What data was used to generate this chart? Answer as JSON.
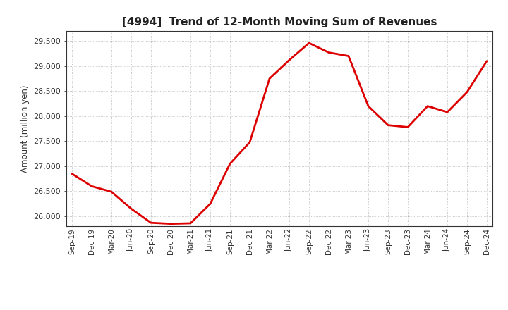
{
  "title": "[4994]  Trend of 12-Month Moving Sum of Revenues",
  "ylabel": "Amount (million yen)",
  "line_color": "#DD0000",
  "background_color": "#FFFFFF",
  "grid_color": "#999999",
  "ylim": [
    25800,
    29700
  ],
  "yticks": [
    26000,
    26500,
    27000,
    27500,
    28000,
    28500,
    29000,
    29500
  ],
  "x_labels": [
    "Sep-19",
    "Dec-19",
    "Mar-20",
    "Jun-20",
    "Sep-20",
    "Dec-20",
    "Mar-21",
    "Jun-21",
    "Sep-21",
    "Dec-21",
    "Mar-22",
    "Jun-22",
    "Sep-22",
    "Dec-22",
    "Mar-23",
    "Jun-23",
    "Sep-23",
    "Dec-23",
    "Mar-24",
    "Jun-24",
    "Sep-24",
    "Dec-24"
  ],
  "values": [
    26850,
    26600,
    26490,
    26150,
    25870,
    25850,
    25860,
    26250,
    27050,
    27480,
    28750,
    29120,
    29460,
    29270,
    29200,
    28200,
    27820,
    27780,
    28200,
    28080,
    28480,
    29100
  ]
}
